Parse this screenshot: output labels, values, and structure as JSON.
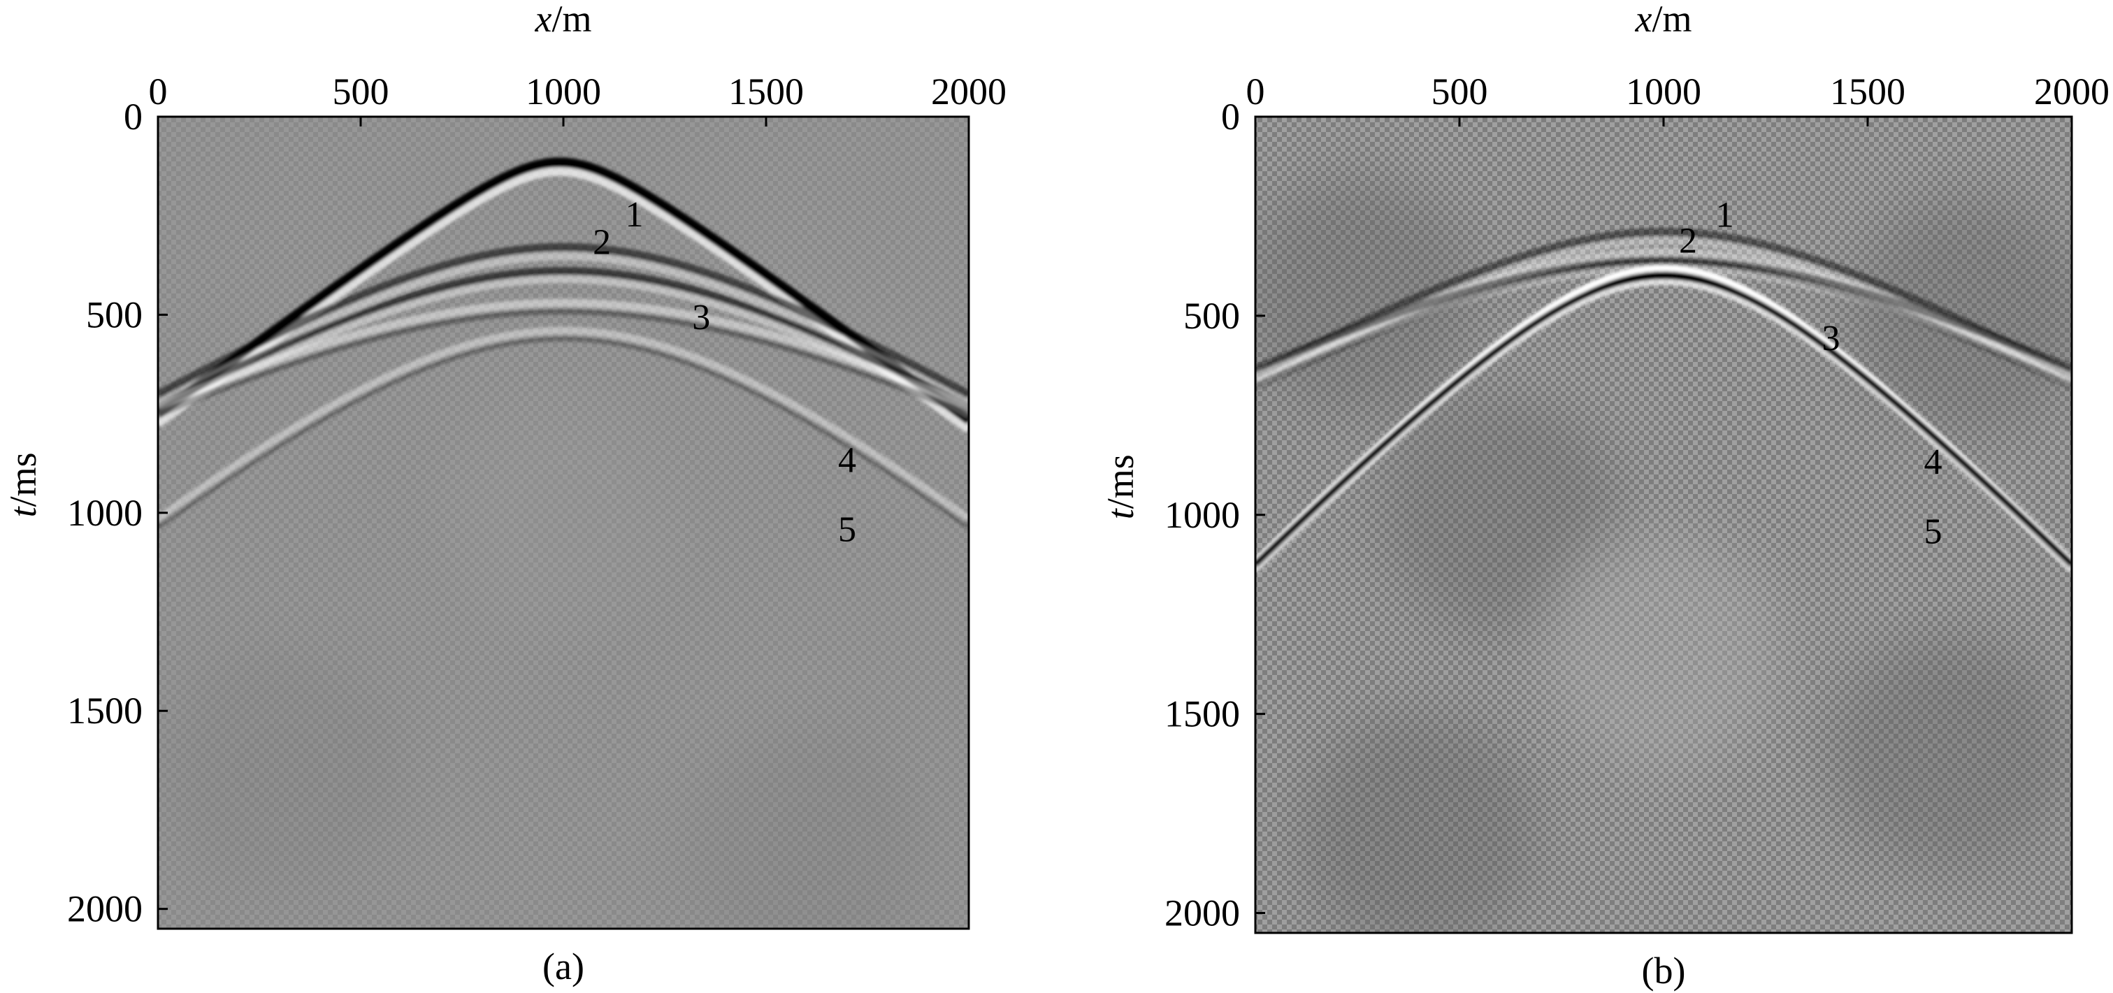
{
  "chart_data": [
    {
      "type": "heatmap",
      "panel_label": "(a)",
      "x_axis_label": {
        "var": "x",
        "unit": "/m"
      },
      "y_axis_label": {
        "var": "t",
        "unit": "/ms"
      },
      "x_ticks": [
        0,
        500,
        1000,
        1500,
        2000
      ],
      "y_ticks": [
        0,
        500,
        1000,
        1500,
        2000
      ],
      "xlim": [
        0,
        2000
      ],
      "ylim": [
        0,
        2050
      ],
      "colormap": "grayscale",
      "events": [
        {
          "label": "1",
          "apex_x": 990,
          "apex_t": 115,
          "slope_ms_per_m": 0.75,
          "polarity": "black",
          "amplitude": 1.0,
          "width_ms": 30
        },
        {
          "label": "2",
          "apex_x": 1000,
          "apex_t": 330,
          "slope_ms_per_m": 0.62,
          "polarity": "black",
          "amplitude": 0.55,
          "width_ms": 28
        },
        {
          "label": "3",
          "apex_x": 1000,
          "apex_t": 390,
          "slope_ms_per_m": 0.62,
          "polarity": "black",
          "amplitude": 0.6,
          "width_ms": 26
        },
        {
          "label": "4",
          "apex_x": 1000,
          "apex_t": 470,
          "slope_ms_per_m": 0.56,
          "polarity": "white",
          "amplitude": 0.45,
          "width_ms": 26
        },
        {
          "label": "5",
          "apex_x": 1000,
          "apex_t": 540,
          "slope_ms_per_m": 0.86,
          "polarity": "white",
          "amplitude": 0.4,
          "width_ms": 24
        }
      ],
      "event_labels": [
        {
          "text": "1",
          "x": 1175,
          "t": 245
        },
        {
          "text": "2",
          "x": 1095,
          "t": 315
        },
        {
          "text": "3",
          "x": 1340,
          "t": 505
        },
        {
          "text": "4",
          "x": 1700,
          "t": 865
        },
        {
          "text": "5",
          "x": 1700,
          "t": 1040
        }
      ]
    },
    {
      "type": "heatmap",
      "panel_label": "(b)",
      "x_axis_label": {
        "var": "x",
        "unit": "/m"
      },
      "y_axis_label": {
        "var": "t",
        "unit": "/ms"
      },
      "x_ticks": [
        0,
        500,
        1000,
        1500,
        2000
      ],
      "y_ticks": [
        0,
        500,
        1000,
        1500,
        2000
      ],
      "xlim": [
        0,
        2000
      ],
      "ylim": [
        0,
        2050
      ],
      "colormap": "grayscale",
      "events": [
        {
          "label": "1",
          "apex_x": 1000,
          "apex_t": 290,
          "slope_ms_per_m": 0.58,
          "polarity": "black",
          "amplitude": 0.45,
          "width_ms": 28
        },
        {
          "label": "2",
          "apex_x": 1000,
          "apex_t": 340,
          "slope_ms_per_m": 0.56,
          "polarity": "white",
          "amplitude": 0.4,
          "width_ms": 28
        },
        {
          "label": "3",
          "apex_x": 1000,
          "apex_t": 360,
          "slope_ms_per_m": 0.52,
          "polarity": "black",
          "amplitude": 0.4,
          "width_ms": 26
        },
        {
          "label": "4",
          "apex_x": 1000,
          "apex_t": 380,
          "slope_ms_per_m": 1.05,
          "polarity": "white",
          "amplitude": 1.0,
          "width_ms": 20
        },
        {
          "label": "5",
          "apex_x": 1000,
          "apex_t": 400,
          "slope_ms_per_m": 1.05,
          "polarity": "black",
          "amplitude": 1.0,
          "width_ms": 20
        }
      ],
      "event_labels": [
        {
          "text": "1",
          "x": 1150,
          "t": 245
        },
        {
          "text": "2",
          "x": 1060,
          "t": 310
        },
        {
          "text": "3",
          "x": 1410,
          "t": 555
        },
        {
          "text": "4",
          "x": 1660,
          "t": 865
        },
        {
          "text": "5",
          "x": 1660,
          "t": 1040
        }
      ]
    }
  ]
}
